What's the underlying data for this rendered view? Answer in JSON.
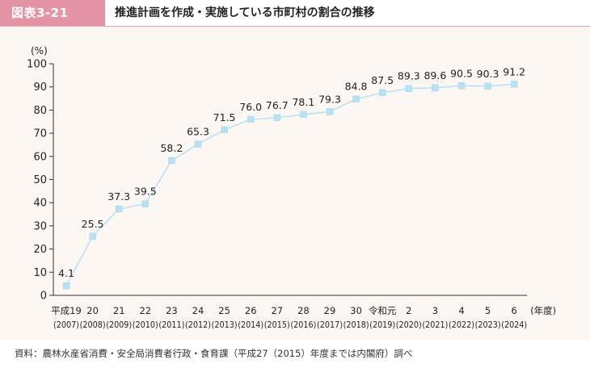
{
  "figure": {
    "label": "図表3-21",
    "title": "推進計画を作成・実施している市町村の割合の推移"
  },
  "source": "資料：農林水産省消費・安全局消費者行政・食育課（平成27（2015）年度までは内閣府）調べ",
  "colors": {
    "badge": "#e594a5",
    "line": "#b8e2f4",
    "marker": "#b8e2f4",
    "panel": "#fdf7f4"
  },
  "chart_data": {
    "type": "line",
    "ylabel": "(%)",
    "xlabel": "(年度)",
    "ylim": [
      0,
      100
    ],
    "yticks": [
      0,
      10,
      20,
      30,
      40,
      50,
      60,
      70,
      80,
      90,
      100
    ],
    "grid": false,
    "categories": [
      {
        "label": "平成19",
        "year": "(2007)"
      },
      {
        "label": "20",
        "year": "(2008)"
      },
      {
        "label": "21",
        "year": "(2009)"
      },
      {
        "label": "22",
        "year": "(2010)"
      },
      {
        "label": "23",
        "year": "(2011)"
      },
      {
        "label": "24",
        "year": "(2012)"
      },
      {
        "label": "25",
        "year": "(2013)"
      },
      {
        "label": "26",
        "year": "(2014)"
      },
      {
        "label": "27",
        "year": "(2015)"
      },
      {
        "label": "28",
        "year": "(2016)"
      },
      {
        "label": "29",
        "year": "(2017)"
      },
      {
        "label": "30",
        "year": "(2018)"
      },
      {
        "label": "令和元",
        "year": "(2019)"
      },
      {
        "label": "2",
        "year": "(2020)"
      },
      {
        "label": "3",
        "year": "(2021)"
      },
      {
        "label": "4",
        "year": "(2022)"
      },
      {
        "label": "5",
        "year": "(2023)"
      },
      {
        "label": "6",
        "year": "(2024)"
      }
    ],
    "values": [
      4.1,
      25.5,
      37.3,
      39.5,
      58.2,
      65.3,
      71.5,
      76.0,
      76.7,
      78.1,
      79.3,
      84.8,
      87.5,
      89.3,
      89.6,
      90.5,
      90.3,
      91.2
    ]
  }
}
